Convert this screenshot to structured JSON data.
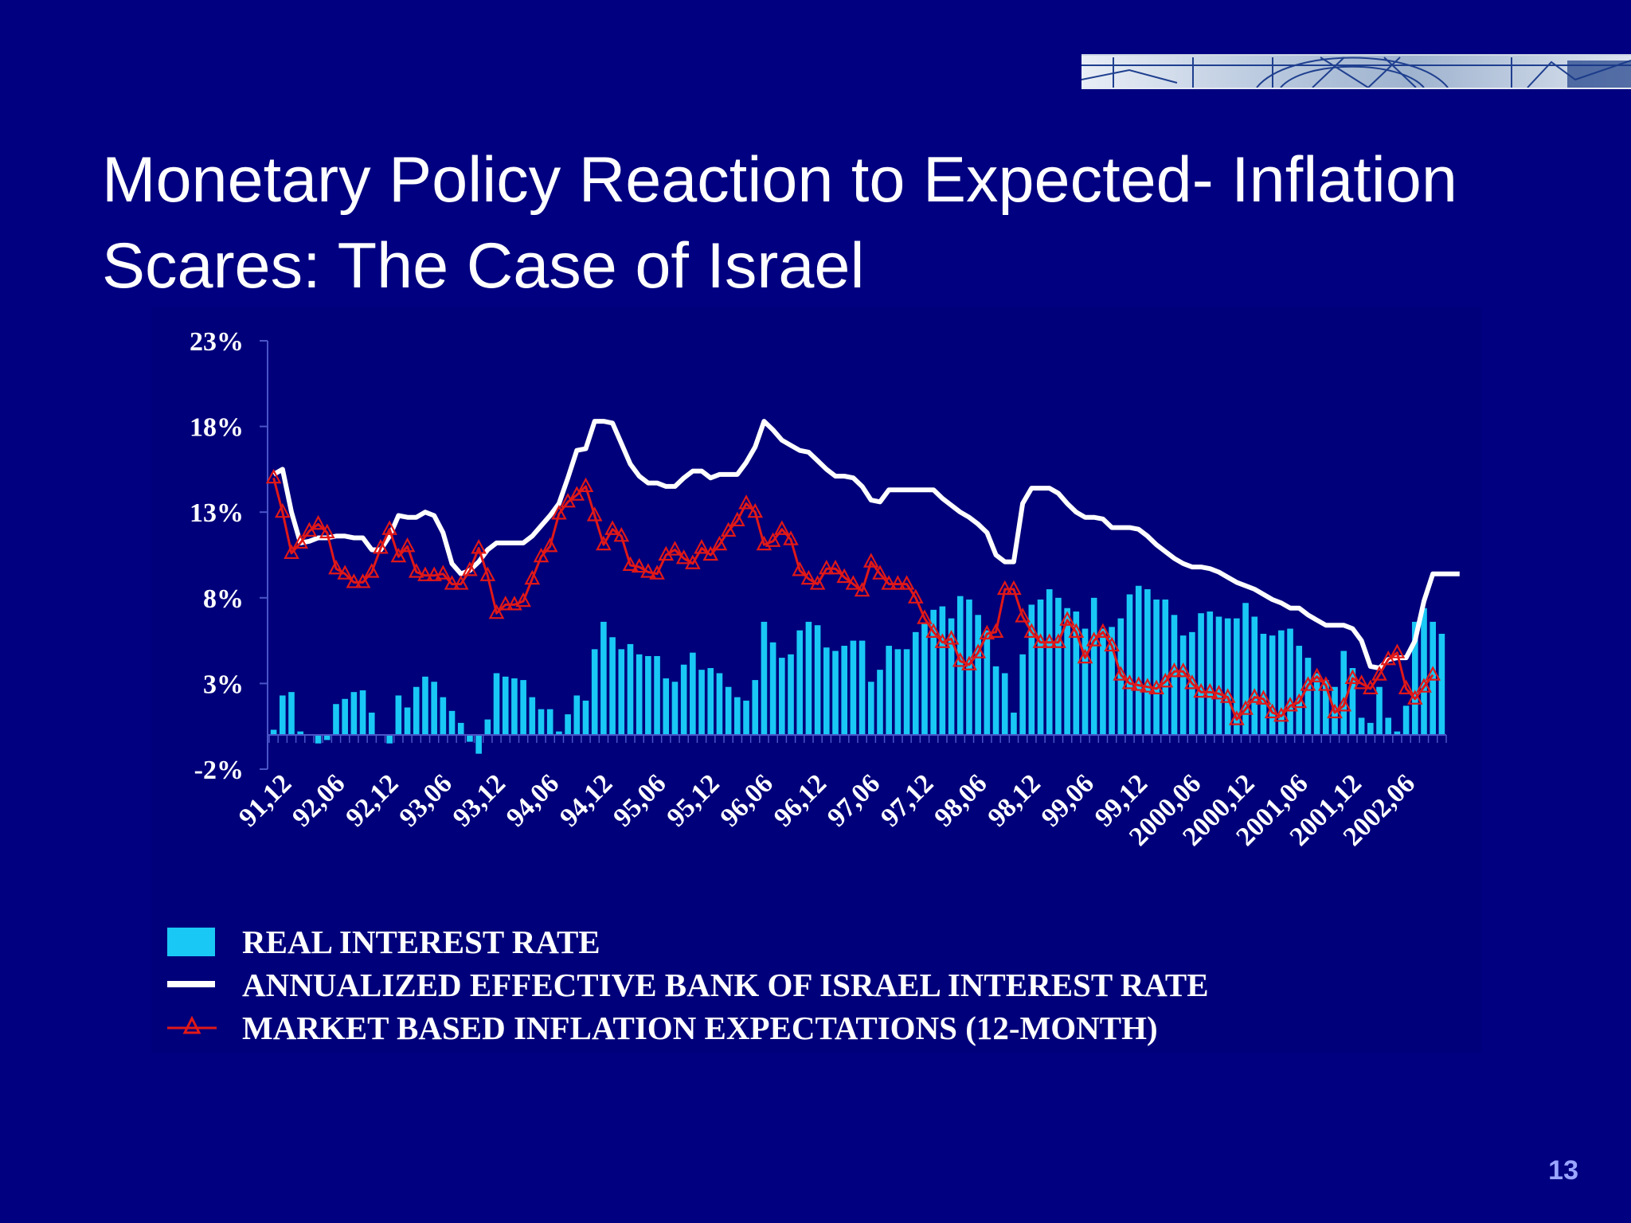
{
  "slide": {
    "title": "Monetary Policy Reaction to Expected- Inflation Scares: The Case of Israel",
    "page_number": "13"
  },
  "colors": {
    "background": "#000080",
    "bars": "#19c8f5",
    "boi_rate_line": "#ffffff",
    "expectations_line": "#e01818"
  },
  "chart_data": {
    "type": "bar",
    "ylim": [
      -2,
      23
    ],
    "y_ticks": [
      "23%",
      "18%",
      "13%",
      "8%",
      "3%",
      "-2%"
    ],
    "y_tick_values": [
      23,
      18,
      13,
      8,
      3,
      -2
    ],
    "x_tick_labels": [
      "91,12",
      "92,06",
      "92,12",
      "93,06",
      "93,12",
      "94,06",
      "94,12",
      "95,06",
      "95,12",
      "96,06",
      "96,12",
      "97,06",
      "97,12",
      "98,06",
      "98,12",
      "99,06",
      "99,12",
      "2000,06",
      "2000,12",
      "2001,06",
      "2001,12",
      "2002,06"
    ],
    "legend": [
      "REAL INTEREST RATE",
      "ANNUALIZED EFFECTIVE BANK OF ISRAEL INTEREST RATE",
      "MARKET BASED INFLATION EXPECTATIONS (12-MONTH)"
    ],
    "series": [
      {
        "name": "REAL INTEREST RATE",
        "type": "bar",
        "values": [
          0.3,
          2.3,
          2.5,
          0.2,
          0,
          -0.5,
          -0.3,
          1.8,
          2.1,
          2.5,
          2.6,
          1.3,
          0,
          -0.5,
          2.3,
          1.6,
          2.8,
          3.4,
          3.1,
          2.2,
          1.4,
          0.7,
          -0.4,
          -1.1,
          0.9,
          3.6,
          3.4,
          3.3,
          3.2,
          2.2,
          1.5,
          1.5,
          0.2,
          1.2,
          2.3,
          2,
          5,
          6.6,
          5.7,
          5,
          5.3,
          4.7,
          4.6,
          4.6,
          3.3,
          3.1,
          4.1,
          4.8,
          3.8,
          3.9,
          3.6,
          2.8,
          2.2,
          2,
          3.2,
          6.6,
          5.4,
          4.5,
          4.7,
          6.1,
          6.6,
          6.4,
          5.1,
          4.9,
          5.2,
          5.5,
          5.5,
          3.1,
          3.8,
          5.2,
          5,
          5,
          6,
          6.5,
          7.3,
          7.5,
          6.8,
          8.1,
          7.9,
          7,
          6.1,
          4,
          3.6,
          1.3,
          4.7,
          7.6,
          7.9,
          8.5,
          8,
          7.4,
          7.2,
          6.2,
          8,
          6.2,
          6.3,
          6.8,
          8.2,
          8.7,
          8.5,
          7.9,
          7.9,
          7,
          5.8,
          6,
          7.1,
          7.2,
          6.9,
          6.8,
          6.8,
          7.7,
          6.9,
          5.9,
          5.8,
          6.1,
          6.2,
          5.2,
          4.5,
          3.6,
          3.2,
          2.8,
          4.9,
          3.9,
          1,
          0.7,
          2.8,
          1,
          0.2,
          1.7,
          6.6,
          7.4,
          6.6,
          5.9
        ]
      },
      {
        "name": "ANNUALIZED EFFECTIVE BANK OF ISRAEL INTEREST RATE",
        "type": "line",
        "values": [
          15.2,
          15.5,
          13,
          11.2,
          11.3,
          11.5,
          11.5,
          11.6,
          11.6,
          11.5,
          11.5,
          10.8,
          10.8,
          11.6,
          12.8,
          12.7,
          12.7,
          13,
          12.8,
          11.8,
          10,
          9.4,
          9.6,
          10.1,
          10.8,
          11.2,
          11.2,
          11.2,
          11.2,
          11.6,
          12.2,
          12.8,
          13.5,
          15,
          16.6,
          16.7,
          18.3,
          18.3,
          18.2,
          17,
          15.8,
          15.1,
          14.7,
          14.7,
          14.5,
          14.5,
          15,
          15.4,
          15.4,
          15,
          15.2,
          15.2,
          15.2,
          15.9,
          16.8,
          18.3,
          17.8,
          17.2,
          16.9,
          16.6,
          16.5,
          16,
          15.5,
          15.1,
          15.1,
          15,
          14.5,
          13.7,
          13.6,
          14.3,
          14.3,
          14.3,
          14.3,
          14.3,
          14.3,
          13.8,
          13.4,
          13,
          12.7,
          12.3,
          11.8,
          10.5,
          10.1,
          10.1,
          13.5,
          14.4,
          14.4,
          14.4,
          14.1,
          13.5,
          13,
          12.7,
          12.7,
          12.6,
          12.1,
          12.1,
          12.1,
          12,
          11.6,
          11.1,
          10.7,
          10.3,
          10,
          9.8,
          9.8,
          9.7,
          9.5,
          9.2,
          8.9,
          8.7,
          8.5,
          8.2,
          7.9,
          7.7,
          7.4,
          7.4,
          7,
          6.7,
          6.4,
          6.4,
          6.4,
          6.2,
          5.5,
          4,
          3.9,
          4.4,
          4.5,
          4.5,
          5.5,
          7.8,
          9.4,
          9.4,
          9.4,
          9.4
        ]
      },
      {
        "name": "MARKET BASED INFLATION EXPECTATIONS (12-MONTH)",
        "type": "line",
        "values": [
          15,
          13,
          10.6,
          11.2,
          11.9,
          12.3,
          11.8,
          9.7,
          9.4,
          8.9,
          8.9,
          9.5,
          10.9,
          12,
          10.4,
          11,
          9.5,
          9.3,
          9.3,
          9.4,
          8.8,
          8.8,
          9.6,
          10.9,
          9.3,
          7.1,
          7.6,
          7.6,
          7.8,
          9.1,
          10.4,
          11,
          12.9,
          13.6,
          14,
          14.5,
          12.8,
          11.1,
          12,
          11.6,
          9.9,
          9.8,
          9.5,
          9.4,
          10.5,
          10.8,
          10.3,
          10,
          10.9,
          10.5,
          11.1,
          11.9,
          12.5,
          13.5,
          13,
          11.1,
          11.3,
          12,
          11.4,
          9.6,
          9.1,
          8.8,
          9.7,
          9.7,
          9.2,
          8.8,
          8.4,
          10.1,
          9.4,
          8.8,
          8.8,
          8.8,
          8,
          6.8,
          6,
          5.4,
          5.6,
          4.3,
          4.1,
          4.8,
          5.9,
          6,
          8.5,
          8.5,
          6.9,
          6,
          5.4,
          5.4,
          5.4,
          6.7,
          6,
          4.5,
          5.5,
          6,
          5.2,
          3.5,
          3,
          2.9,
          2.8,
          2.7,
          3.1,
          3.7,
          3.7,
          3,
          2.5,
          2.5,
          2.4,
          2.2,
          0.9,
          1.5,
          2.2,
          2.1,
          1.3,
          1.1,
          1.7,
          1.9,
          2.9,
          3.4,
          2.9,
          1.3,
          1.7,
          3.3,
          3,
          2.7,
          3.5,
          4.4,
          4.8,
          2.7,
          2.1,
          2.8,
          3.5
        ]
      }
    ]
  }
}
